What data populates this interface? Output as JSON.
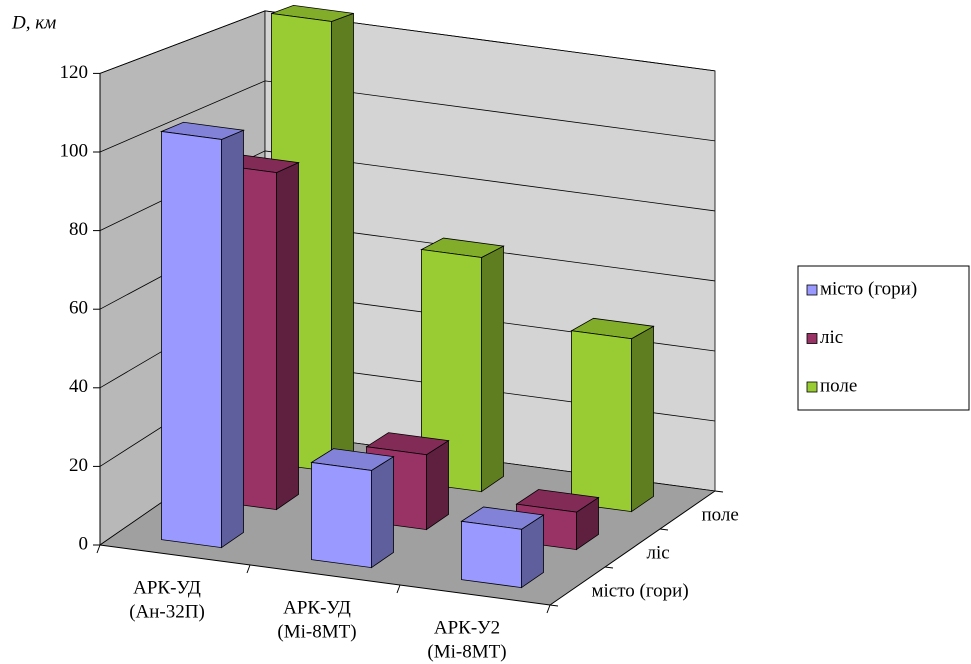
{
  "chart_data": {
    "type": "bar3d",
    "y_label": "D, км",
    "categories": [
      [
        "АРК-УД",
        "(Ан-32П)"
      ],
      [
        "АРК-УД",
        "(Мі-8МТ)"
      ],
      [
        "АРК-У2",
        "(Мі-8МТ)"
      ]
    ],
    "series": [
      {
        "name": "місто (гори)",
        "color": "#9999ff",
        "values": [
          105,
          25,
          15
        ]
      },
      {
        "name": "ліс",
        "color": "#993366",
        "values": [
          90,
          20,
          10
        ]
      },
      {
        "name": "поле",
        "color": "#99cc33",
        "values": [
          125,
          65,
          48
        ]
      }
    ],
    "ylim": [
      0,
      120
    ],
    "yticks": [
      0,
      20,
      40,
      60,
      80,
      100,
      120
    ],
    "grid": true,
    "legend": "right"
  }
}
